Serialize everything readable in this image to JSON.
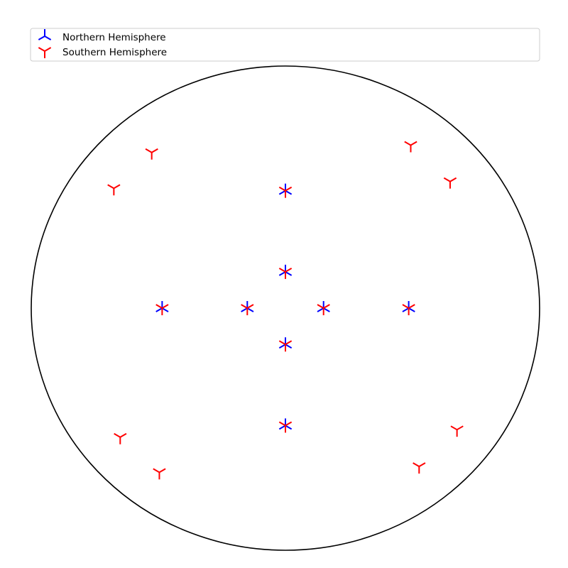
{
  "chart_data": {
    "type": "scatter",
    "projection": "stereographic-net",
    "xlim": [
      -1,
      1
    ],
    "ylim": [
      -1,
      1
    ],
    "grid": false,
    "legend": {
      "placement": "top",
      "frame": true
    },
    "series": [
      {
        "name": "Northern Hemisphere",
        "marker": "tri-up",
        "color": "#0000ff",
        "points": [
          [
            0.0,
            0.485
          ],
          [
            0.0,
            0.15
          ],
          [
            -0.485,
            0.0
          ],
          [
            -0.15,
            0.0
          ],
          [
            0.15,
            0.0
          ],
          [
            0.485,
            0.0
          ],
          [
            0.0,
            -0.15
          ],
          [
            0.0,
            -0.485
          ]
        ]
      },
      {
        "name": "Southern Hemisphere",
        "marker": "tri-down",
        "color": "#ff0000",
        "points": [
          [
            -0.526,
            0.643
          ],
          [
            0.493,
            0.673
          ],
          [
            -0.675,
            0.495
          ],
          [
            0.648,
            0.523
          ],
          [
            0.0,
            0.485
          ],
          [
            0.0,
            0.15
          ],
          [
            -0.485,
            0.0
          ],
          [
            -0.15,
            0.0
          ],
          [
            0.15,
            0.0
          ],
          [
            0.485,
            0.0
          ],
          [
            0.0,
            -0.15
          ],
          [
            0.0,
            -0.485
          ],
          [
            -0.65,
            -0.533
          ],
          [
            0.675,
            -0.502
          ],
          [
            -0.496,
            -0.678
          ],
          [
            0.526,
            -0.654
          ]
        ]
      }
    ]
  }
}
